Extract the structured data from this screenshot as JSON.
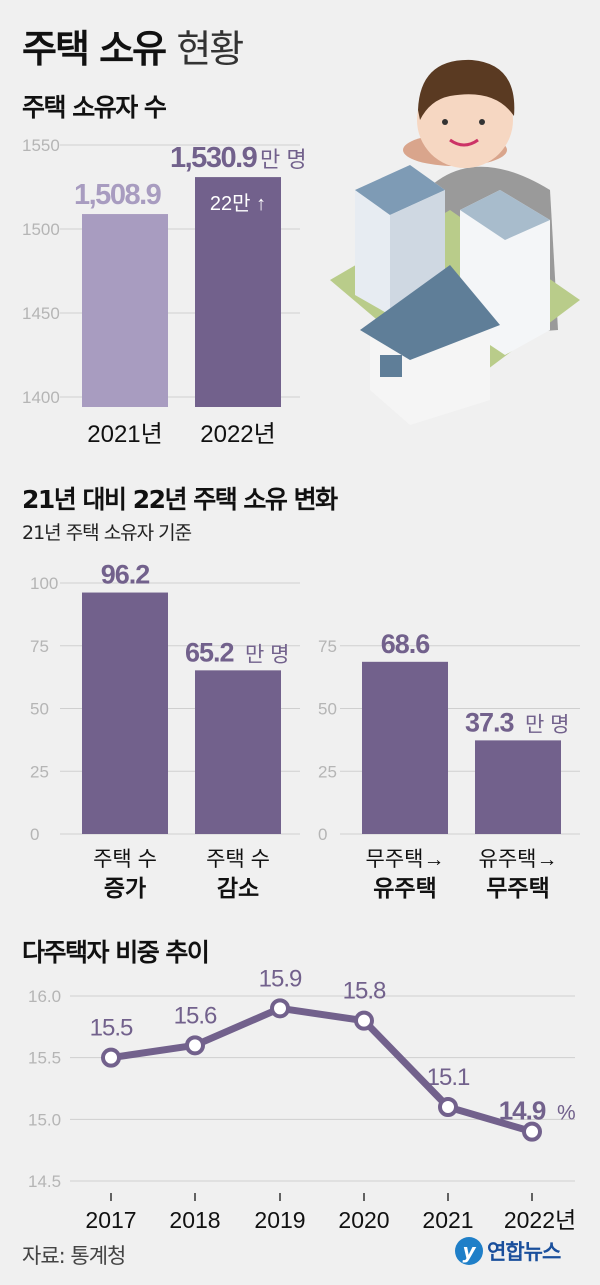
{
  "header": {
    "title_bold": "주택 소유",
    "title_light": "현황"
  },
  "colors": {
    "light_purple": "#a89cc0",
    "dark_purple": "#72618c",
    "grid": "#cfcfcf",
    "tick": "#b5b5b5",
    "background": "#f0f0f0"
  },
  "illustration": {
    "icon": "person-with-houses-and-apartments-icon"
  },
  "chart_data": [
    {
      "type": "bar",
      "title": "주택 소유자 수",
      "categories": [
        "2021년",
        "2022년"
      ],
      "values": [
        1508.9,
        1530.9
      ],
      "value_labels": [
        "1,508.9",
        "1,530.9"
      ],
      "unit": "만 명",
      "annotation": "22만 ↑",
      "ylim": [
        1400,
        1550
      ],
      "yticks": [
        "1550",
        "1500",
        "1450",
        "1400"
      ],
      "grid": true
    },
    {
      "type": "bar",
      "title": "21년 대비 22년 주택 소유 변화",
      "subtitle": "21년 주택 소유자 기준",
      "panels": [
        {
          "categories": [
            [
              "주택 수",
              "증가"
            ],
            [
              "주택 수",
              "감소"
            ]
          ],
          "values": [
            96.2,
            65.2
          ],
          "value_labels": [
            "96.2",
            "65.2"
          ],
          "unit": "만 명",
          "ylim": [
            0,
            100
          ],
          "yticks": [
            "100",
            "75",
            "50",
            "25",
            "0"
          ]
        },
        {
          "categories": [
            [
              "무주택→",
              "유주택"
            ],
            [
              "유주택→",
              "무주택"
            ]
          ],
          "values": [
            68.6,
            37.3
          ],
          "value_labels": [
            "68.6",
            "37.3"
          ],
          "unit": "만 명",
          "ylim": [
            0,
            75
          ],
          "yticks": [
            "75",
            "50",
            "25",
            "0"
          ]
        }
      ],
      "grid": true
    },
    {
      "type": "line",
      "title": "다주택자 비중 추이",
      "categories": [
        "2017",
        "2018",
        "2019",
        "2020",
        "2021",
        "2022년"
      ],
      "values": [
        15.5,
        15.6,
        15.9,
        15.8,
        15.1,
        14.9
      ],
      "value_labels": [
        "15.5",
        "15.6",
        "15.9",
        "15.8",
        "15.1",
        "14.9"
      ],
      "unit": "%",
      "ylim": [
        14.5,
        16.0
      ],
      "yticks": [
        "16.0",
        "15.5",
        "15.0",
        "14.5"
      ],
      "grid": true
    }
  ],
  "footer": {
    "source": "자료: 통계청",
    "logo_mark": "Y",
    "logo_text": "연합뉴스"
  }
}
